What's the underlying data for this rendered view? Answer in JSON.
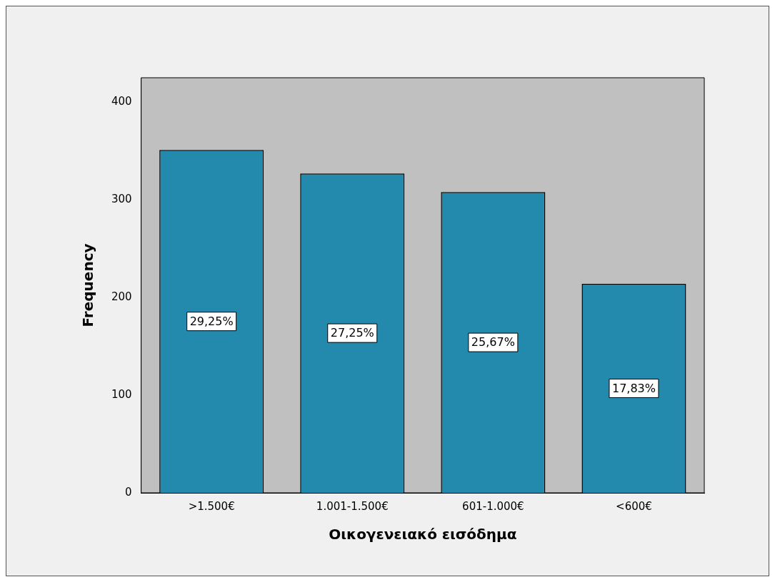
{
  "chart_data": {
    "type": "bar",
    "xlabel": "Οικογενειακό εισόδημα",
    "ylabel": "Frequency",
    "categories": [
      ">1.500€",
      "1.001-1.500€",
      "601-1.000€",
      "<600€"
    ],
    "values": [
      351,
      327,
      308,
      214
    ],
    "annotations": [
      "29,25%",
      "27,25%",
      "25,67%",
      "17,83%"
    ],
    "color": "#2389ad",
    "ylim": [
      0,
      425
    ],
    "yticks": [
      0,
      100,
      200,
      300,
      400
    ],
    "grid": false,
    "legend": false
  }
}
